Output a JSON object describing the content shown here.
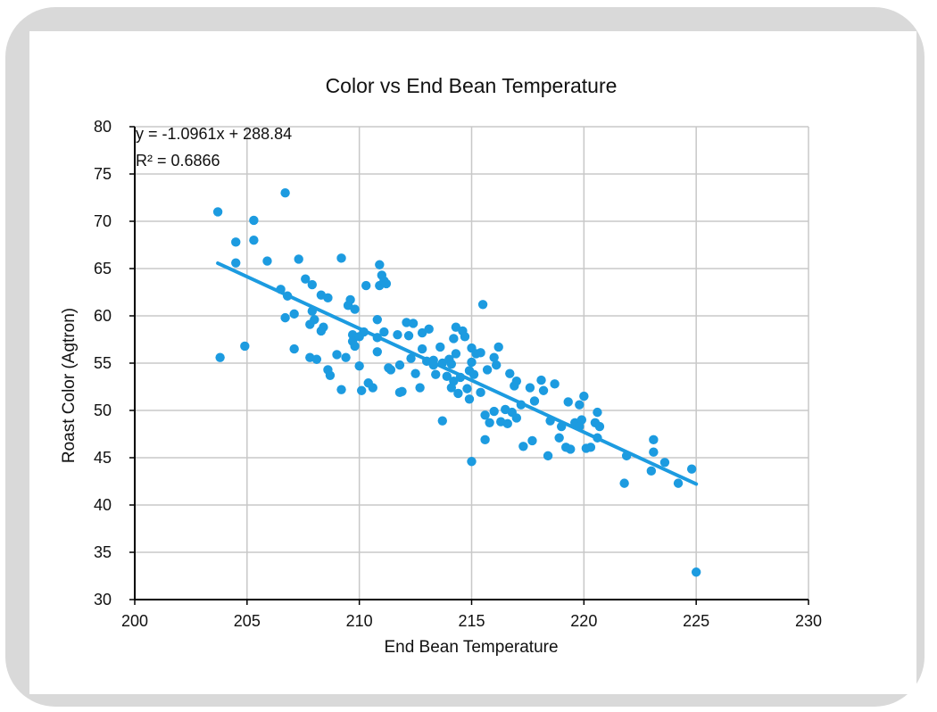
{
  "chart_data": {
    "type": "scatter",
    "title": "Color vs End Bean Temperature",
    "xlabel": "End Bean Temperature",
    "ylabel": "Roast Color (Agtron)",
    "xlim": [
      200,
      230
    ],
    "ylim": [
      30,
      80
    ],
    "xticks": [
      200,
      205,
      210,
      215,
      220,
      225,
      230
    ],
    "yticks": [
      30,
      35,
      40,
      45,
      50,
      55,
      60,
      65,
      70,
      75,
      80
    ],
    "grid": true,
    "colors": {
      "points": "#1c9be0",
      "trendline": "#1c9be0",
      "grid": "#c8c8c8",
      "axis": "#000000"
    },
    "trendline": {
      "slope": -1.0961,
      "intercept": 288.84,
      "x_range": [
        203.7,
        225
      ],
      "equation_label": "y = -1.0961x + 288.84",
      "r2_label": "R² = 0.6866"
    },
    "points": [
      [
        203.7,
        71.0
      ],
      [
        203.8,
        55.6
      ],
      [
        204.5,
        67.8
      ],
      [
        204.5,
        65.6
      ],
      [
        204.9,
        56.8
      ],
      [
        205.3,
        70.1
      ],
      [
        205.3,
        68.0
      ],
      [
        205.9,
        65.8
      ],
      [
        206.5,
        62.8
      ],
      [
        206.7,
        59.8
      ],
      [
        206.7,
        73.0
      ],
      [
        206.8,
        62.1
      ],
      [
        207.1,
        60.2
      ],
      [
        207.1,
        56.5
      ],
      [
        207.3,
        66.0
      ],
      [
        207.6,
        63.9
      ],
      [
        207.8,
        59.1
      ],
      [
        207.8,
        55.6
      ],
      [
        207.9,
        60.5
      ],
      [
        207.9,
        63.3
      ],
      [
        208.0,
        59.6
      ],
      [
        208.1,
        55.4
      ],
      [
        208.3,
        62.2
      ],
      [
        208.3,
        58.4
      ],
      [
        208.4,
        58.8
      ],
      [
        208.6,
        61.9
      ],
      [
        208.6,
        54.3
      ],
      [
        208.7,
        53.7
      ],
      [
        209.0,
        55.9
      ],
      [
        209.2,
        66.1
      ],
      [
        209.2,
        52.2
      ],
      [
        209.4,
        55.6
      ],
      [
        209.5,
        61.1
      ],
      [
        209.6,
        61.7
      ],
      [
        209.7,
        58.0
      ],
      [
        209.7,
        57.3
      ],
      [
        209.8,
        56.8
      ],
      [
        209.8,
        60.7
      ],
      [
        210.0,
        57.8
      ],
      [
        210.0,
        54.7
      ],
      [
        210.1,
        52.1
      ],
      [
        210.2,
        58.3
      ],
      [
        210.3,
        63.2
      ],
      [
        210.4,
        52.9
      ],
      [
        210.6,
        52.4
      ],
      [
        210.8,
        59.6
      ],
      [
        210.8,
        57.7
      ],
      [
        210.8,
        56.2
      ],
      [
        210.9,
        63.2
      ],
      [
        210.9,
        65.4
      ],
      [
        211.0,
        64.3
      ],
      [
        211.1,
        63.7
      ],
      [
        211.2,
        63.4
      ],
      [
        211.1,
        58.3
      ],
      [
        211.3,
        54.5
      ],
      [
        211.4,
        54.3
      ],
      [
        211.7,
        58.0
      ],
      [
        211.8,
        54.8
      ],
      [
        211.8,
        51.9
      ],
      [
        211.9,
        52.0
      ],
      [
        212.1,
        59.3
      ],
      [
        212.2,
        57.9
      ],
      [
        212.3,
        55.5
      ],
      [
        212.4,
        59.2
      ],
      [
        212.5,
        53.9
      ],
      [
        212.7,
        52.4
      ],
      [
        212.8,
        58.2
      ],
      [
        212.8,
        56.5
      ],
      [
        213.0,
        55.2
      ],
      [
        213.1,
        58.6
      ],
      [
        213.3,
        55.3
      ],
      [
        213.3,
        54.8
      ],
      [
        213.4,
        53.8
      ],
      [
        213.6,
        56.7
      ],
      [
        213.7,
        48.9
      ],
      [
        213.7,
        55.0
      ],
      [
        213.9,
        53.6
      ],
      [
        214.0,
        55.4
      ],
      [
        214.1,
        52.4
      ],
      [
        214.1,
        54.9
      ],
      [
        214.2,
        53.1
      ],
      [
        214.2,
        57.6
      ],
      [
        214.3,
        58.8
      ],
      [
        214.3,
        56.0
      ],
      [
        214.4,
        51.8
      ],
      [
        214.5,
        53.5
      ],
      [
        214.6,
        58.4
      ],
      [
        214.7,
        57.8
      ],
      [
        214.8,
        52.3
      ],
      [
        214.9,
        51.2
      ],
      [
        214.9,
        54.2
      ],
      [
        215.0,
        55.1
      ],
      [
        215.0,
        56.6
      ],
      [
        215.0,
        44.6
      ],
      [
        215.1,
        53.8
      ],
      [
        215.2,
        56.0
      ],
      [
        215.4,
        56.1
      ],
      [
        215.4,
        51.9
      ],
      [
        215.5,
        61.2
      ],
      [
        215.6,
        49.5
      ],
      [
        215.6,
        46.9
      ],
      [
        215.7,
        54.3
      ],
      [
        215.8,
        48.7
      ],
      [
        216.0,
        55.6
      ],
      [
        216.0,
        49.9
      ],
      [
        216.1,
        54.8
      ],
      [
        216.2,
        56.7
      ],
      [
        216.3,
        48.8
      ],
      [
        216.5,
        50.1
      ],
      [
        216.6,
        48.6
      ],
      [
        216.7,
        53.9
      ],
      [
        216.8,
        49.8
      ],
      [
        216.9,
        52.6
      ],
      [
        217.0,
        53.1
      ],
      [
        217.0,
        49.2
      ],
      [
        217.2,
        50.6
      ],
      [
        217.3,
        46.2
      ],
      [
        217.6,
        52.4
      ],
      [
        217.7,
        46.8
      ],
      [
        217.8,
        51.0
      ],
      [
        218.1,
        53.2
      ],
      [
        218.2,
        52.1
      ],
      [
        218.4,
        45.2
      ],
      [
        218.5,
        48.9
      ],
      [
        218.7,
        52.8
      ],
      [
        218.9,
        47.1
      ],
      [
        219.0,
        48.3
      ],
      [
        219.2,
        46.1
      ],
      [
        219.3,
        50.9
      ],
      [
        219.4,
        45.9
      ],
      [
        219.6,
        48.7
      ],
      [
        219.8,
        48.3
      ],
      [
        219.8,
        50.6
      ],
      [
        219.9,
        49.0
      ],
      [
        220.0,
        51.5
      ],
      [
        220.1,
        46.0
      ],
      [
        220.3,
        46.1
      ],
      [
        220.5,
        48.7
      ],
      [
        220.6,
        47.1
      ],
      [
        220.6,
        49.8
      ],
      [
        220.7,
        48.3
      ],
      [
        221.8,
        42.3
      ],
      [
        221.9,
        45.2
      ],
      [
        223.0,
        43.6
      ],
      [
        223.1,
        45.6
      ],
      [
        223.1,
        46.9
      ],
      [
        223.6,
        44.5
      ],
      [
        224.2,
        42.3
      ],
      [
        224.8,
        43.8
      ],
      [
        225.0,
        32.9
      ]
    ]
  }
}
